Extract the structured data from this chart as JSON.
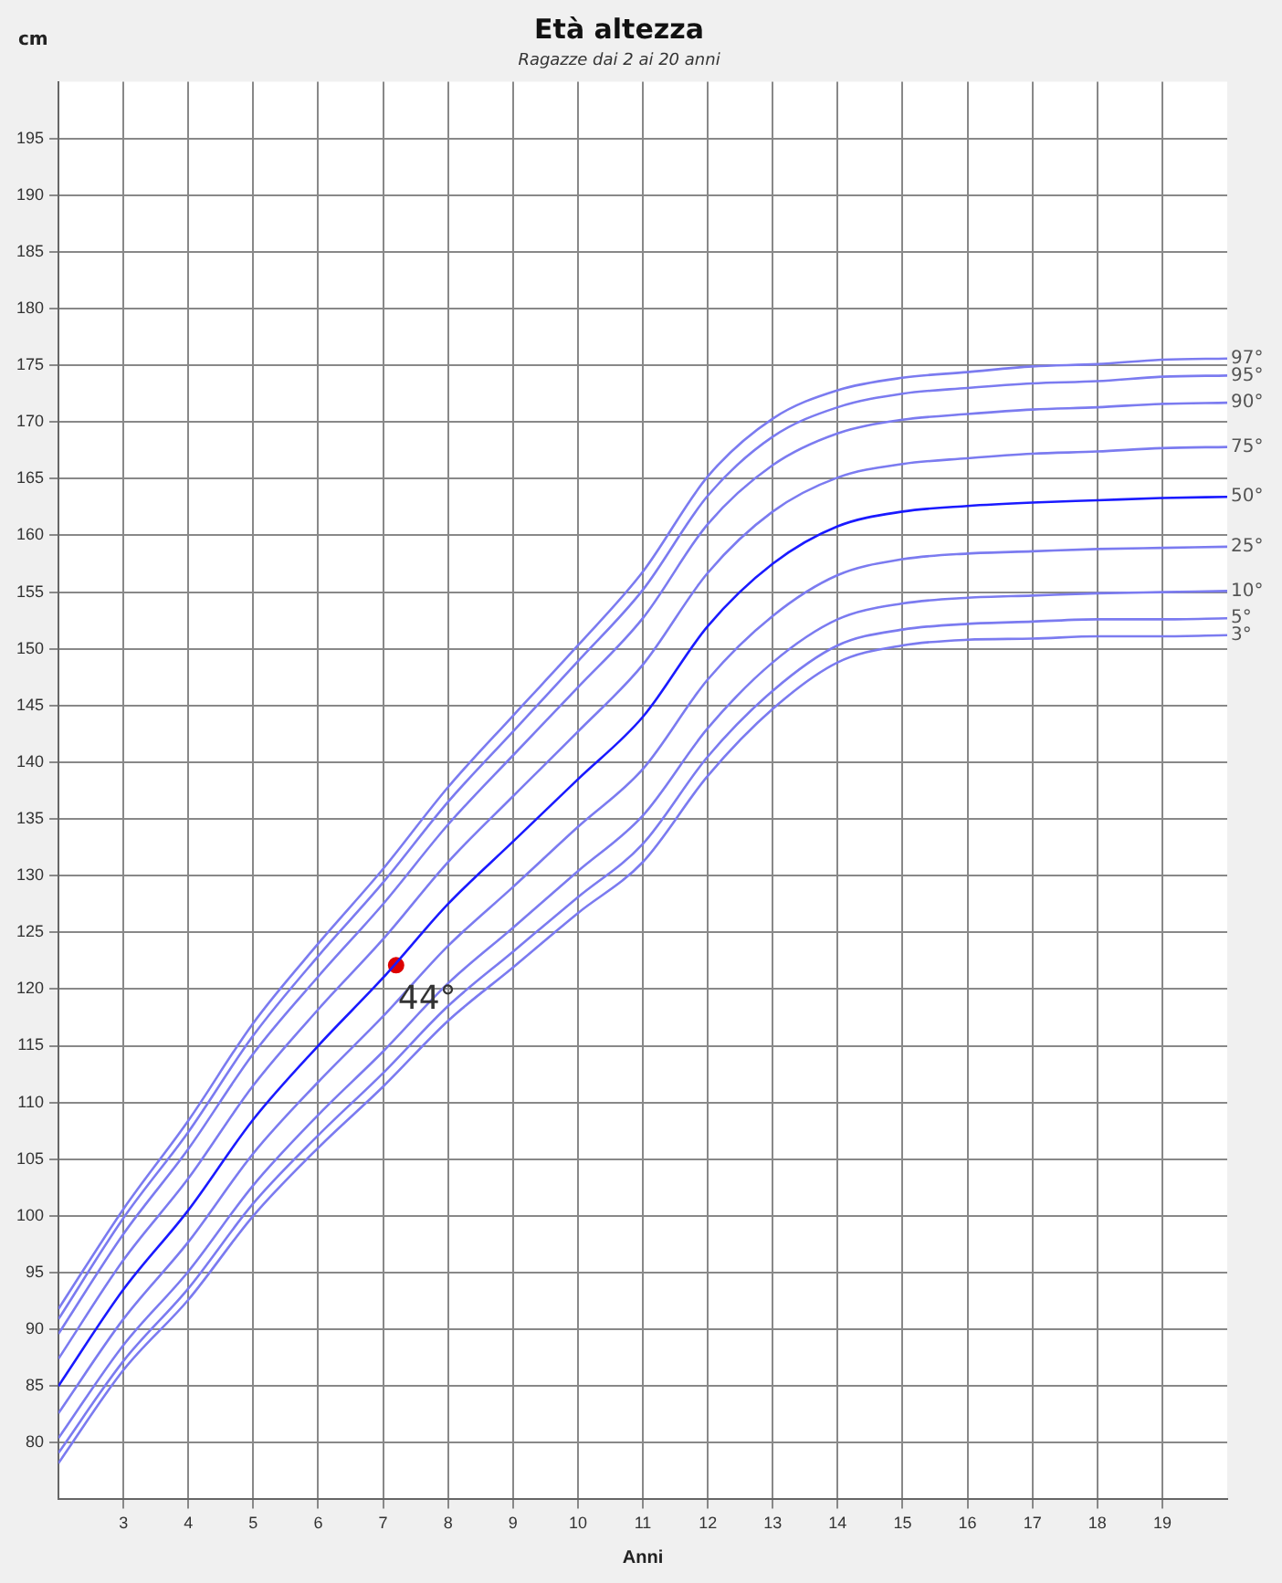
{
  "chart_data": {
    "type": "line",
    "title": "Età altezza",
    "subtitle": "Ragazze dai 2 ai 20 anni",
    "xlabel": "Anni",
    "ylabel": "cm",
    "x": [
      2,
      3,
      4,
      5,
      6,
      7,
      8,
      9,
      10,
      11,
      12,
      13,
      14,
      15,
      16,
      17,
      18,
      19,
      20
    ],
    "series": [
      {
        "name": "97°",
        "color": "#7b7bf0",
        "values": [
          91.8,
          100.6,
          108.4,
          117.0,
          124.0,
          130.6,
          137.8,
          144.1,
          150.3,
          156.8,
          165.2,
          170.3,
          172.8,
          173.9,
          174.4,
          174.9,
          175.1,
          175.5,
          175.6
        ]
      },
      {
        "name": "95°",
        "color": "#7b7bf0",
        "values": [
          90.9,
          99.8,
          107.4,
          115.9,
          122.9,
          129.4,
          136.5,
          142.7,
          148.9,
          155.2,
          163.5,
          168.7,
          171.3,
          172.5,
          173.0,
          173.4,
          173.6,
          174.0,
          174.1
        ]
      },
      {
        "name": "90°",
        "color": "#7b7bf0",
        "values": [
          89.6,
          98.4,
          105.9,
          114.3,
          121.1,
          127.5,
          134.5,
          140.6,
          146.6,
          152.7,
          161.0,
          166.2,
          169.0,
          170.2,
          170.7,
          171.1,
          171.3,
          171.6,
          171.7
        ]
      },
      {
        "name": "75°",
        "color": "#7b7bf0",
        "values": [
          87.4,
          96.1,
          103.3,
          111.5,
          118.2,
          124.4,
          131.2,
          137.0,
          142.7,
          148.6,
          156.7,
          162.1,
          165.1,
          166.3,
          166.8,
          167.2,
          167.4,
          167.7,
          167.8
        ]
      },
      {
        "name": "50°",
        "color": "#1a1aff",
        "values": [
          85.0,
          93.5,
          100.5,
          108.5,
          115.0,
          121.0,
          127.5,
          133.0,
          138.5,
          144.0,
          152.0,
          157.5,
          160.8,
          162.1,
          162.6,
          162.9,
          163.1,
          163.3,
          163.4
        ]
      },
      {
        "name": "25°",
        "color": "#7b7bf0",
        "values": [
          82.6,
          90.9,
          97.7,
          105.5,
          111.8,
          117.6,
          123.8,
          129.0,
          134.3,
          139.4,
          147.3,
          152.9,
          156.5,
          157.9,
          158.4,
          158.6,
          158.8,
          158.9,
          159.0
        ]
      },
      {
        "name": "10°",
        "color": "#7b7bf0",
        "values": [
          80.4,
          88.6,
          95.1,
          102.7,
          108.9,
          114.5,
          120.5,
          125.4,
          130.4,
          135.3,
          143.0,
          148.8,
          152.6,
          154.0,
          154.5,
          154.7,
          154.9,
          155.0,
          155.1
        ]
      },
      {
        "name": "5°",
        "color": "#7b7bf0",
        "values": [
          79.1,
          87.2,
          93.6,
          101.1,
          107.1,
          112.6,
          118.5,
          123.3,
          128.1,
          132.8,
          140.5,
          146.3,
          150.3,
          151.7,
          152.2,
          152.4,
          152.6,
          152.6,
          152.7
        ]
      },
      {
        "name": "3°",
        "color": "#7b7bf0",
        "values": [
          78.2,
          86.4,
          92.6,
          100.0,
          106.0,
          111.4,
          117.2,
          121.9,
          126.7,
          131.2,
          138.8,
          144.7,
          148.8,
          150.3,
          150.8,
          150.9,
          151.1,
          151.1,
          151.2
        ]
      },
      {
        "type": "scatter",
        "marker": "circle",
        "color": "#dd0000",
        "x": [
          7.2
        ],
        "values": [
          122.1
        ]
      }
    ],
    "annotations": [
      {
        "text": "44°",
        "x": 7.2,
        "y": 122.1
      }
    ],
    "xlim": [
      2,
      20
    ],
    "xticks": [
      3,
      4,
      5,
      6,
      7,
      8,
      9,
      10,
      11,
      12,
      13,
      14,
      15,
      16,
      17,
      18,
      19
    ],
    "ylim": [
      75,
      200
    ],
    "yticks": [
      80,
      85,
      90,
      95,
      100,
      105,
      110,
      115,
      120,
      125,
      130,
      135,
      140,
      145,
      150,
      155,
      160,
      165,
      170,
      175,
      180,
      185,
      190,
      195
    ],
    "grid": true,
    "legend": false,
    "marker": "none",
    "line_style": "solid"
  }
}
